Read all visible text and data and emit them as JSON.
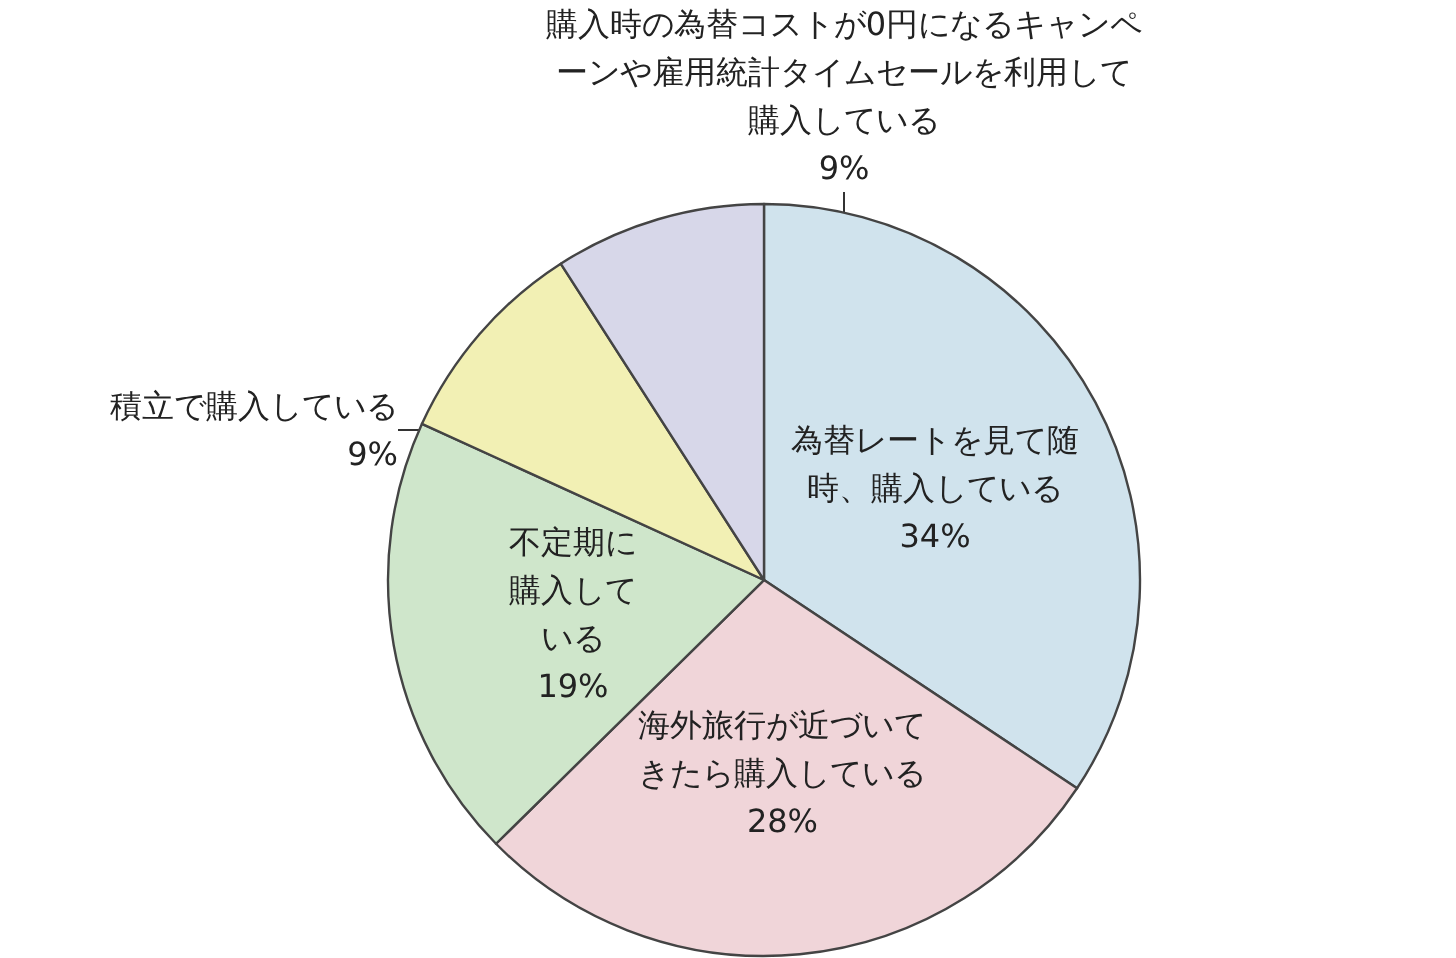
{
  "chart_data": {
    "type": "pie",
    "categories": [
      "為替レートを見て随時、購入している",
      "海外旅行が近づいてきたら購入している",
      "不定期に購入している",
      "積立で購入している",
      "購入時の為替コストが0円になるキャンペーンや雇用統計タイムセールを利用して購入している"
    ],
    "values": [
      34,
      28,
      19,
      9,
      9
    ],
    "value_labels": [
      "34%",
      "28%",
      "19%",
      "9%",
      "9%"
    ],
    "colors": [
      "#d0e3ed",
      "#f0d5d9",
      "#cfe6cb",
      "#f2f0b4",
      "#d7d7e9"
    ]
  }
}
